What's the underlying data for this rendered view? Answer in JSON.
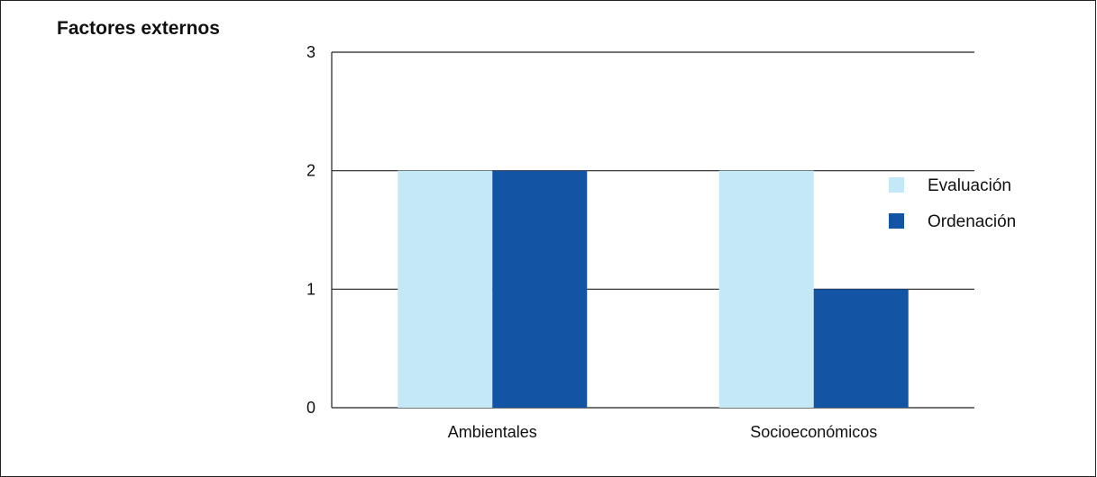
{
  "chart_data": {
    "type": "bar",
    "title": "Factores externos",
    "categories": [
      "Ambientales",
      "Socioeconómicos"
    ],
    "series": [
      {
        "name": "Evaluación",
        "values": [
          2,
          2
        ],
        "color": "#c5e8f7"
      },
      {
        "name": "Ordenación",
        "values": [
          2,
          1
        ],
        "color": "#1454a5"
      }
    ],
    "ylim": [
      0,
      3
    ],
    "yticks": [
      0,
      1,
      2,
      3
    ],
    "grid": true,
    "legend_position": "right"
  }
}
